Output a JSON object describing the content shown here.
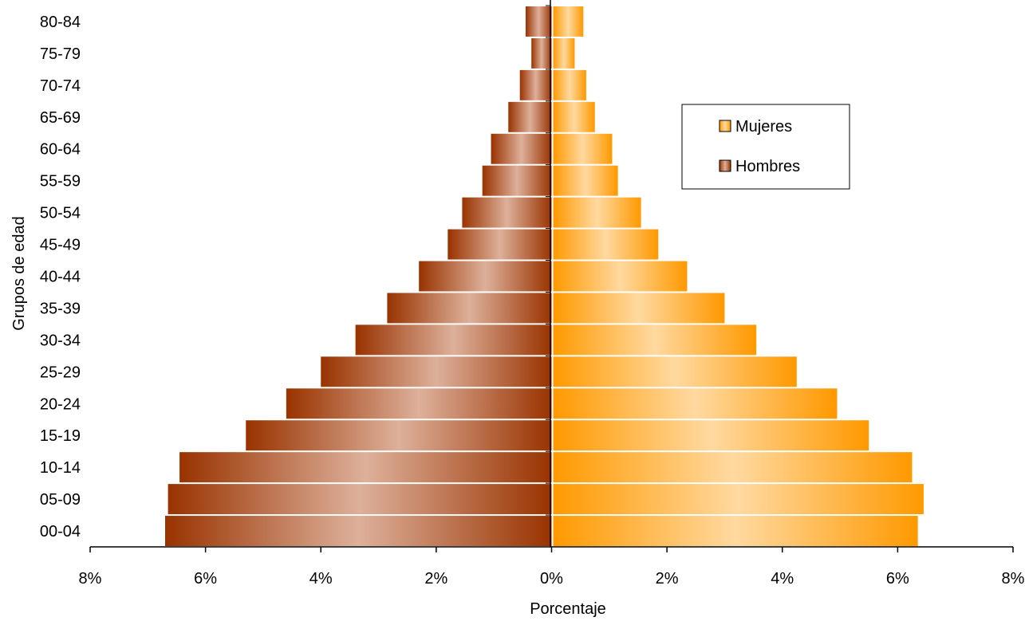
{
  "chart_data": {
    "type": "bar",
    "orientation": "horizontal",
    "layout": "population-pyramid",
    "categories": [
      "00-04",
      "05-09",
      "10-14",
      "15-19",
      "20-24",
      "25-29",
      "30-34",
      "35-39",
      "40-44",
      "45-49",
      "50-54",
      "55-59",
      "60-64",
      "65-69",
      "70-74",
      "75-79",
      "80-84"
    ],
    "series": [
      {
        "name": "Mujeres",
        "side": "right",
        "color": "#FF9900",
        "values": [
          6.35,
          6.45,
          6.25,
          5.5,
          4.95,
          4.25,
          3.55,
          3.0,
          2.35,
          1.85,
          1.55,
          1.15,
          1.05,
          0.75,
          0.6,
          0.4,
          0.55
        ]
      },
      {
        "name": "Hombres",
        "side": "left",
        "color": "#993300",
        "values": [
          6.7,
          6.65,
          6.45,
          5.3,
          4.6,
          4.0,
          3.4,
          2.85,
          2.3,
          1.8,
          1.55,
          1.2,
          1.05,
          0.75,
          0.55,
          0.35,
          0.45
        ]
      }
    ],
    "x_ticks": [
      "8%",
      "6%",
      "4%",
      "2%",
      "0%",
      "2%",
      "4%",
      "6%",
      "8%"
    ],
    "xlim": [
      -8,
      8
    ],
    "xlabel": "Porcentaje",
    "ylabel": "Grupos de edad",
    "grid": false,
    "legend": {
      "placement": "top-right",
      "entries": [
        "Mujeres",
        "Hombres"
      ]
    }
  }
}
